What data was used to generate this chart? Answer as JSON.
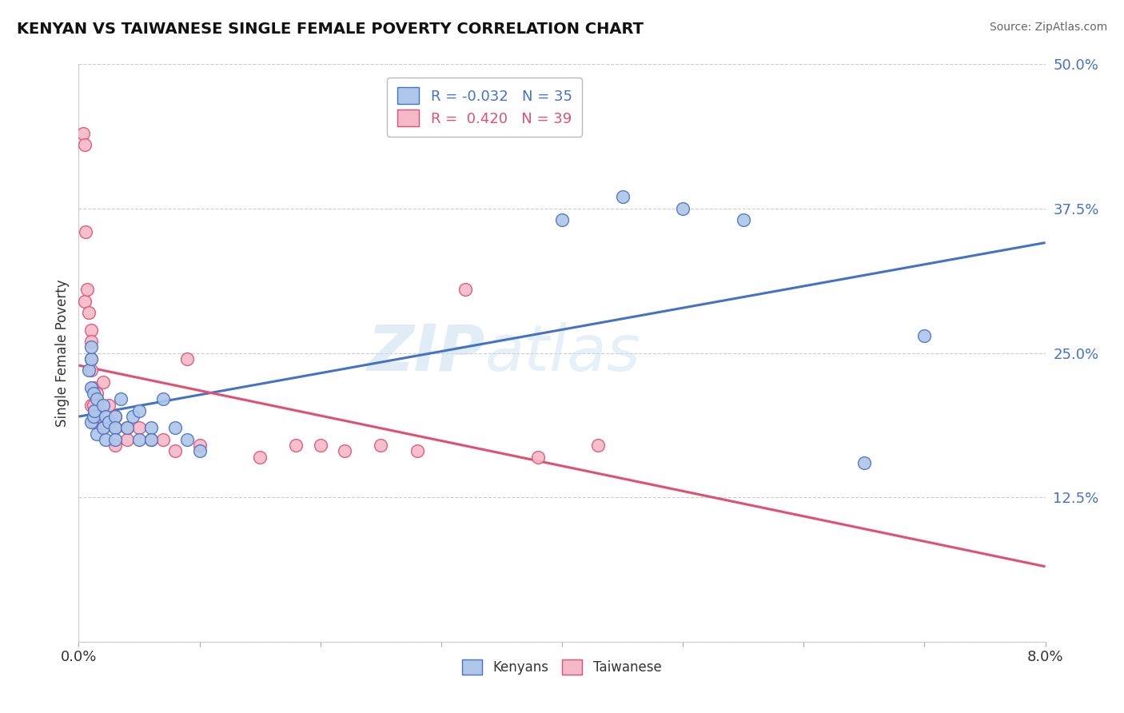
{
  "title": "KENYAN VS TAIWANESE SINGLE FEMALE POVERTY CORRELATION CHART",
  "source": "Source: ZipAtlas.com",
  "ylabel": "Single Female Poverty",
  "xlim": [
    0.0,
    0.08
  ],
  "ylim": [
    0.0,
    0.5
  ],
  "yticks": [
    0.0,
    0.125,
    0.25,
    0.375,
    0.5
  ],
  "ytick_labels": [
    "",
    "12.5%",
    "25.0%",
    "37.5%",
    "50.0%"
  ],
  "kenyan_color": "#aec6e8",
  "taiwanese_color": "#f5b8c8",
  "kenyan_line_color": "#4472c4",
  "taiwanese_line_color": "#e05070",
  "kenyan_R": -0.032,
  "kenyan_N": 35,
  "taiwanese_R": 0.42,
  "taiwanese_N": 39,
  "background_color": "#ffffff",
  "grid_color": "#cccccc",
  "watermark_zip": "ZIP",
  "watermark_atlas": "atlas",
  "kenyan_x": [
    0.0008,
    0.001,
    0.001,
    0.001,
    0.001,
    0.0012,
    0.0012,
    0.0013,
    0.0015,
    0.0015,
    0.002,
    0.002,
    0.0022,
    0.0022,
    0.0025,
    0.003,
    0.003,
    0.003,
    0.0035,
    0.004,
    0.0045,
    0.005,
    0.005,
    0.006,
    0.006,
    0.007,
    0.008,
    0.009,
    0.01,
    0.04,
    0.045,
    0.05,
    0.055,
    0.065,
    0.07
  ],
  "kenyan_y": [
    0.235,
    0.22,
    0.245,
    0.255,
    0.19,
    0.215,
    0.195,
    0.2,
    0.21,
    0.18,
    0.205,
    0.185,
    0.195,
    0.175,
    0.19,
    0.195,
    0.185,
    0.175,
    0.21,
    0.185,
    0.195,
    0.2,
    0.175,
    0.185,
    0.175,
    0.21,
    0.185,
    0.175,
    0.165,
    0.365,
    0.385,
    0.375,
    0.365,
    0.155,
    0.265
  ],
  "taiwanese_x": [
    0.0004,
    0.0005,
    0.0005,
    0.0006,
    0.0007,
    0.0008,
    0.001,
    0.001,
    0.001,
    0.001,
    0.001,
    0.0012,
    0.0012,
    0.0013,
    0.0015,
    0.0015,
    0.002,
    0.002,
    0.0025,
    0.003,
    0.003,
    0.003,
    0.004,
    0.004,
    0.005,
    0.006,
    0.007,
    0.008,
    0.009,
    0.01,
    0.015,
    0.018,
    0.02,
    0.022,
    0.025,
    0.028,
    0.032,
    0.038,
    0.043
  ],
  "taiwanese_y": [
    0.44,
    0.43,
    0.295,
    0.355,
    0.305,
    0.285,
    0.27,
    0.26,
    0.245,
    0.235,
    0.205,
    0.22,
    0.205,
    0.19,
    0.215,
    0.195,
    0.225,
    0.185,
    0.205,
    0.195,
    0.185,
    0.17,
    0.185,
    0.175,
    0.185,
    0.175,
    0.175,
    0.165,
    0.245,
    0.17,
    0.16,
    0.17,
    0.17,
    0.165,
    0.17,
    0.165,
    0.305,
    0.16,
    0.17
  ]
}
